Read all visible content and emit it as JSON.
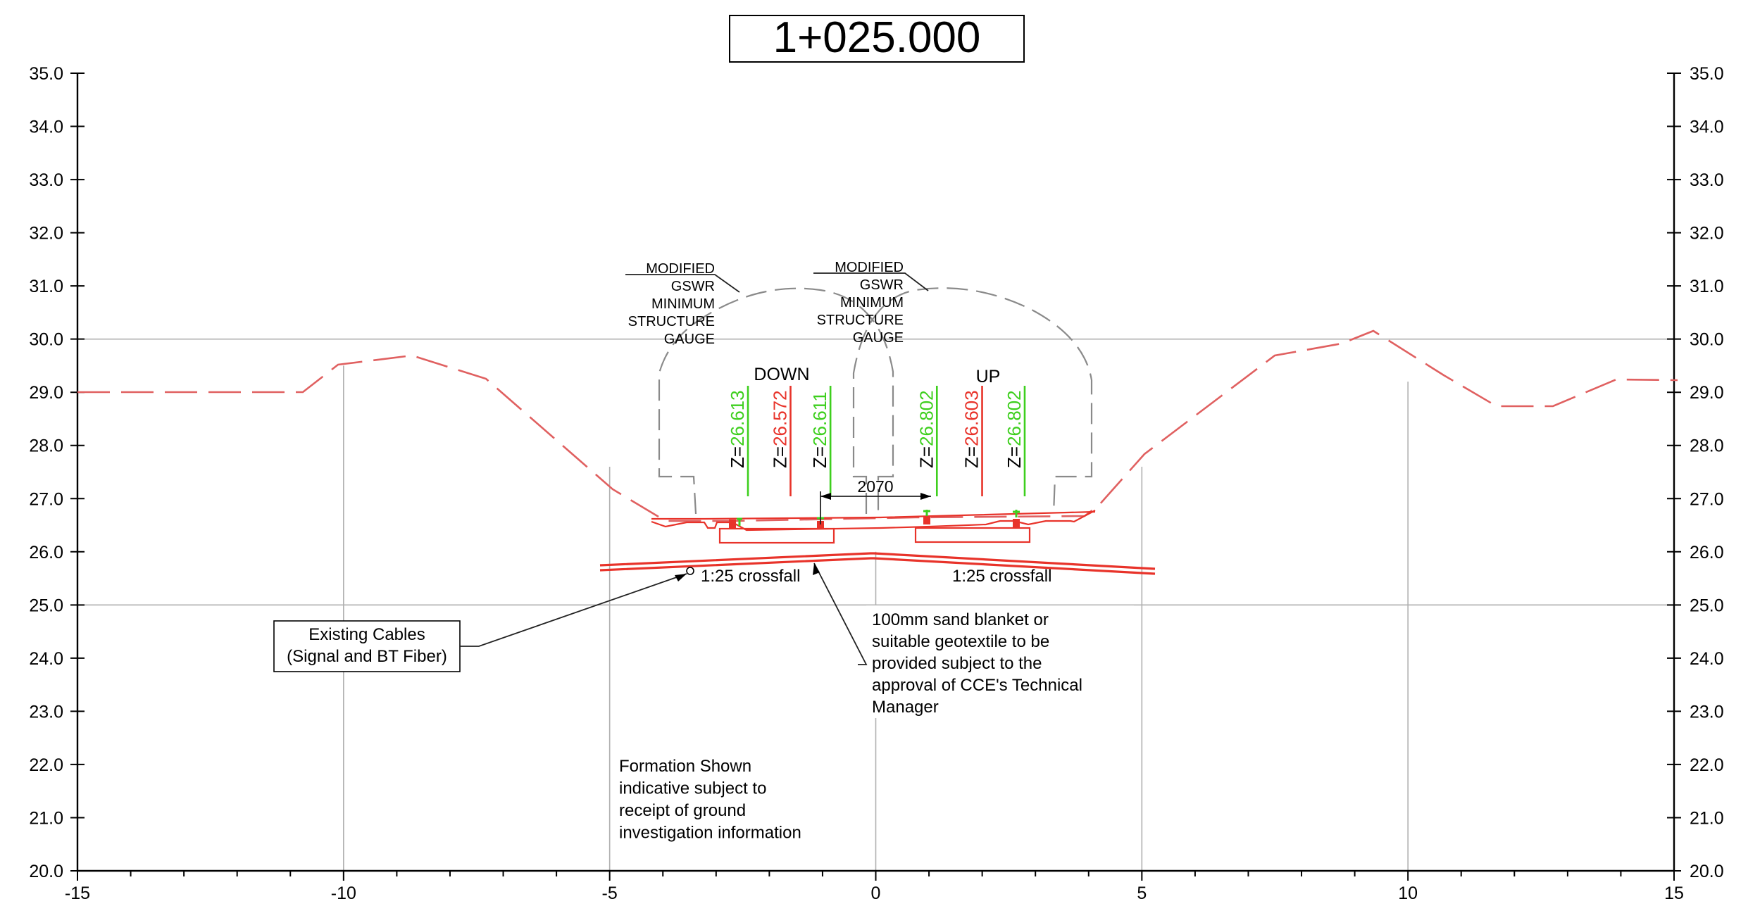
{
  "title": "1+025.000",
  "x_axis": {
    "min": -15,
    "max": 15,
    "tick_labels": [
      "-15",
      "-10",
      "-5",
      "0",
      "5",
      "10",
      "15"
    ]
  },
  "y_axis": {
    "min": 20.0,
    "max": 35.0,
    "tick_labels": [
      "20.0",
      "21.0",
      "22.0",
      "23.0",
      "24.0",
      "25.0",
      "26.0",
      "27.0",
      "28.0",
      "29.0",
      "30.0",
      "31.0",
      "32.0",
      "33.0",
      "34.0",
      "35.0"
    ]
  },
  "track_labels": {
    "down": "DOWN",
    "up": "UP"
  },
  "levels": [
    {
      "label": "Z=",
      "value": "26.613",
      "color": "#3ecf1e",
      "x": -2.6
    },
    {
      "label": "Z=",
      "value": "26.572",
      "color": "#e8332a",
      "x": -1.8
    },
    {
      "label": "Z=",
      "value": "26.611",
      "color": "#3ecf1e",
      "x": -1.05
    },
    {
      "label": "Z=",
      "value": "26.802",
      "color": "#3ecf1e",
      "x": 0.95
    },
    {
      "label": "Z=",
      "value": "26.603",
      "color": "#e8332a",
      "x": 1.8
    },
    {
      "label": "Z=",
      "value": "26.802",
      "color": "#3ecf1e",
      "x": 2.6
    }
  ],
  "track_centres_dimension": "2070",
  "gauge_labels": {
    "left": [
      "MODIFIED",
      "GSWR",
      "MINIMUM",
      "STRUCTURE",
      "GAUGE"
    ],
    "right": [
      "MODIFIED",
      "GSWR",
      "MINIMUM",
      "STRUCTURE",
      "GAUGE"
    ]
  },
  "crossfall": {
    "left": "1:25 crossfall",
    "right": "1:25 crossfall"
  },
  "cables_box": [
    "Existing Cables",
    "(Signal and BT Fiber)"
  ],
  "sand_note": [
    "100mm sand blanket or",
    "suitable geotextile to be",
    "provided subject to the",
    "approval of CCE's Technical",
    "Manager"
  ],
  "formation_note": [
    "Formation Shown",
    "indicative subject to",
    "receipt of ground",
    "investigation information"
  ],
  "colors": {
    "ground": "#e06060",
    "rail_green": "#3ecf1e",
    "rail_red": "#e8332a",
    "gauge": "#8a8a8a",
    "grid": "#b0b0b0"
  }
}
